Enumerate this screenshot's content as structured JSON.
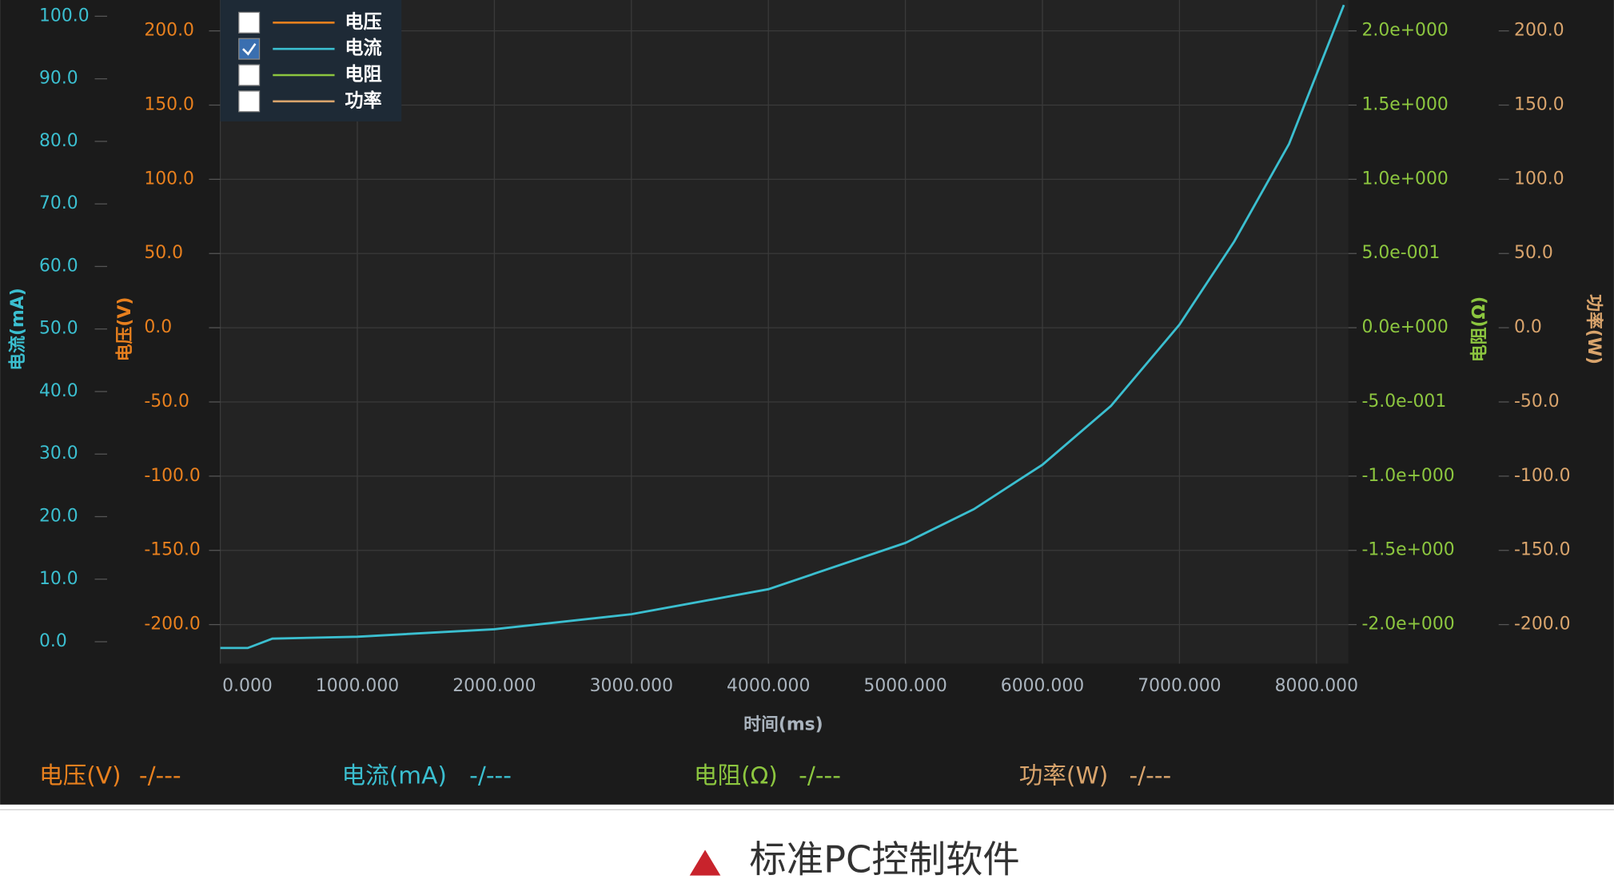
{
  "chart_data": {
    "type": "line",
    "x_label": "时间(ms)",
    "x": [
      0,
      200,
      380,
      1000,
      2000,
      3000,
      4000,
      5000,
      5500,
      6000,
      6500,
      7000,
      7400,
      7800,
      8200
    ],
    "xlim": [
      0,
      8233
    ],
    "xticks": [
      {
        "value": 0,
        "label": "0.000"
      },
      {
        "value": 1000,
        "label": "1000.000"
      },
      {
        "value": 2000,
        "label": "2000.000"
      },
      {
        "value": 3000,
        "label": "3000.000"
      },
      {
        "value": 4000,
        "label": "4000.000"
      },
      {
        "value": 5000,
        "label": "5000.000"
      },
      {
        "value": 6000,
        "label": "6000.000"
      },
      {
        "value": 7000,
        "label": "7000.000"
      },
      {
        "value": 8000,
        "label": "8000.000"
      }
    ],
    "grid": true,
    "axes": [
      {
        "id": "current",
        "label": "电流(mA)",
        "color": "#3bbfd0",
        "side": "left",
        "ylim": [
          -3.5,
          102.6
        ],
        "yticks": [
          {
            "value": 0,
            "label": "0.0"
          },
          {
            "value": 10,
            "label": "10.0"
          },
          {
            "value": 20,
            "label": "20.0"
          },
          {
            "value": 30,
            "label": "30.0"
          },
          {
            "value": 40,
            "label": "40.0"
          },
          {
            "value": 50,
            "label": "50.0"
          },
          {
            "value": 60,
            "label": "60.0"
          },
          {
            "value": 70,
            "label": "70.0"
          },
          {
            "value": 80,
            "label": "80.0"
          },
          {
            "value": 90,
            "label": "90.0"
          },
          {
            "value": 100,
            "label": "100.0"
          }
        ]
      },
      {
        "id": "voltage",
        "label": "电压(V)",
        "color": "#e8801e",
        "side": "left",
        "ylim": [
          -226.3,
          220.8
        ],
        "yticks": [
          {
            "value": -200,
            "label": "-200.0"
          },
          {
            "value": -150,
            "label": "-150.0"
          },
          {
            "value": -100,
            "label": "-100.0"
          },
          {
            "value": -50,
            "label": "-50.0"
          },
          {
            "value": 0,
            "label": "0.0"
          },
          {
            "value": 50,
            "label": "50.0"
          },
          {
            "value": 100,
            "label": "100.0"
          },
          {
            "value": 150,
            "label": "150.0"
          },
          {
            "value": 200,
            "label": "200.0"
          }
        ]
      },
      {
        "id": "resistance",
        "label": "电阻(Ω)",
        "color": "#8cc63f",
        "side": "right",
        "ylim": [
          -2.263,
          2.208
        ],
        "yticks": [
          {
            "value": -2,
            "label": "-2.0e+000"
          },
          {
            "value": -1.5,
            "label": "-1.5e+000"
          },
          {
            "value": -1,
            "label": "-1.0e+000"
          },
          {
            "value": -0.5,
            "label": "-5.0e-001"
          },
          {
            "value": 0,
            "label": "0.0e+000"
          },
          {
            "value": 0.5,
            "label": "5.0e-001"
          },
          {
            "value": 1,
            "label": "1.0e+000"
          },
          {
            "value": 1.5,
            "label": "1.5e+000"
          },
          {
            "value": 2,
            "label": "2.0e+000"
          }
        ]
      },
      {
        "id": "power",
        "label": "功率(W)",
        "color": "#d9a46c",
        "side": "right",
        "ylim": [
          -226.3,
          220.8
        ],
        "yticks": [
          {
            "value": -200,
            "label": "-200.0"
          },
          {
            "value": -150,
            "label": "-150.0"
          },
          {
            "value": -100,
            "label": "-100.0"
          },
          {
            "value": -50,
            "label": "-50.0"
          },
          {
            "value": 0,
            "label": "0.0"
          },
          {
            "value": 50,
            "label": "50.0"
          },
          {
            "value": 100,
            "label": "100.0"
          },
          {
            "value": 150,
            "label": "150.0"
          },
          {
            "value": 200,
            "label": "200.0"
          }
        ]
      }
    ],
    "series": [
      {
        "name": "电压",
        "color": "#e8801e",
        "axis": "voltage",
        "checked": false
      },
      {
        "name": "电流",
        "color": "#3bbfd0",
        "axis": "current",
        "checked": true,
        "values": [
          -1.0,
          -1.0,
          0.5,
          0.8,
          2.0,
          4.4,
          8.4,
          15.8,
          21.2,
          28.3,
          37.7,
          50.7,
          64.0,
          79.6,
          101.8
        ]
      },
      {
        "name": "电阻",
        "color": "#8cc63f",
        "axis": "resistance",
        "checked": false
      },
      {
        "name": "功率",
        "color": "#d9a46c",
        "axis": "power",
        "checked": false
      }
    ],
    "readouts": [
      {
        "label": "电压(V)",
        "value": "-/---",
        "color": "#e8801e"
      },
      {
        "label": "电流(mA)",
        "value": "-/---",
        "color": "#3bbfd0"
      },
      {
        "label": "电阻(Ω)",
        "value": "-/---",
        "color": "#8cc63f"
      },
      {
        "label": "功率(W)",
        "value": "-/---",
        "color": "#d9a46c"
      }
    ]
  },
  "caption": "标准PC控制软件"
}
